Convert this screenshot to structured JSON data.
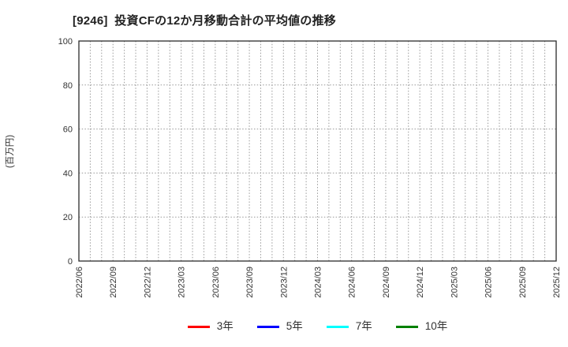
{
  "chart_data": {
    "type": "line",
    "title": "[9246]  投資CFの12か月移動合計の平均値の推移",
    "ylabel": "(百万円)",
    "xlabel": "",
    "ylim": [
      0,
      100
    ],
    "yticks": [
      0,
      20,
      40,
      60,
      80,
      100
    ],
    "x_start": "2022/06",
    "x_end": "2025/12",
    "x_tick_labels": [
      "2022/06",
      "2022/09",
      "2022/12",
      "2023/03",
      "2023/06",
      "2023/09",
      "2023/12",
      "2024/03",
      "2024/06",
      "2024/09",
      "2024/12",
      "2025/03",
      "2025/06",
      "2025/09",
      "2025/12"
    ],
    "x_months_per_tick": 3,
    "x_total_month_intervals": 42,
    "grid": "on",
    "grid_style": "dotted",
    "grid_color": "#999999",
    "axis_color": "#2b2b2b",
    "legend_position": "bottom",
    "series": [
      {
        "name": "3年",
        "color": "#ff0000",
        "values": []
      },
      {
        "name": "5年",
        "color": "#0000ff",
        "values": []
      },
      {
        "name": "7年",
        "color": "#00ffff",
        "values": []
      },
      {
        "name": "10年",
        "color": "#008000",
        "values": []
      }
    ]
  }
}
